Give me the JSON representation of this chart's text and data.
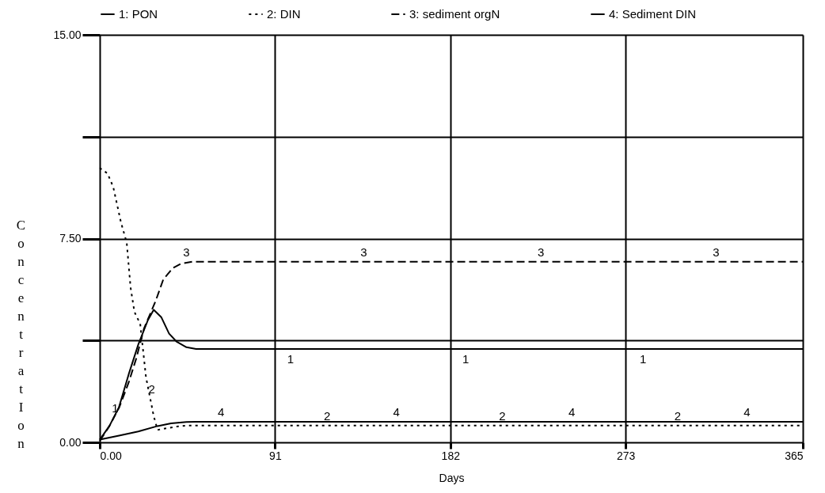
{
  "chart_data": {
    "type": "line",
    "xlabel": "Days",
    "ylabel": "ConcentratIon",
    "xlim": [
      0,
      365
    ],
    "ylim": [
      0,
      15
    ],
    "xticks": [
      {
        "value": 0,
        "label": "0.00"
      },
      91,
      182,
      273,
      365
    ],
    "yticks": [
      {
        "value": 0,
        "label": "0.00"
      },
      {
        "value": 3.75,
        "label": null
      },
      {
        "value": 7.5,
        "label": "7.50"
      },
      {
        "value": 11.25,
        "label": null
      },
      {
        "value": 15,
        "label": "15.00"
      }
    ],
    "grid": true,
    "legend": "top",
    "marker": "none",
    "series": [
      {
        "name": "1: PON",
        "color": "#000000",
        "line_style": "solid",
        "x": [
          0,
          5,
          10,
          15,
          20,
          25,
          28,
          32,
          36,
          40,
          45,
          50,
          365
        ],
        "values": [
          0.1,
          0.6,
          1.3,
          2.5,
          3.6,
          4.5,
          4.88,
          4.6,
          4.0,
          3.7,
          3.5,
          3.44,
          3.44
        ]
      },
      {
        "name": "2: DIN",
        "color": "#000000",
        "line_style": "dotted",
        "x": [
          0,
          4,
          7,
          11,
          14,
          16,
          18,
          21,
          24,
          28,
          30,
          33,
          40,
          45,
          365
        ],
        "values": [
          10.1,
          9.9,
          9.4,
          8.1,
          7.35,
          5.7,
          4.8,
          4.36,
          2.4,
          0.97,
          0.46,
          0.5,
          0.58,
          0.62,
          0.62
        ]
      },
      {
        "name": "3: sediment orgN",
        "color": "#000000",
        "line_style": "dashed",
        "x": [
          0,
          5,
          10,
          15,
          19,
          23,
          29,
          33,
          38,
          42,
          48,
          365
        ],
        "values": [
          0.05,
          0.6,
          1.27,
          2.2,
          3.1,
          4.2,
          5.2,
          6.0,
          6.42,
          6.57,
          6.65,
          6.65
        ]
      },
      {
        "name": "4: Sediment DIN",
        "color": "#000000",
        "line_style": "solid",
        "x": [
          0,
          10,
          20,
          30,
          37,
          45,
          50,
          365
        ],
        "values": [
          0.1,
          0.25,
          0.4,
          0.6,
          0.7,
          0.75,
          0.76,
          0.76
        ]
      }
    ],
    "annotations": [
      {
        "text": "1",
        "x": 8,
        "y": 0.9
      },
      {
        "text": "1",
        "x": 99,
        "y": 3.44
      },
      {
        "text": "1",
        "x": 190,
        "y": 3.44
      },
      {
        "text": "1",
        "x": 282,
        "y": 3.44
      },
      {
        "text": "2",
        "x": 27,
        "y": 1.6
      },
      {
        "text": "2",
        "x": 118,
        "y": 0.62
      },
      {
        "text": "2",
        "x": 209,
        "y": 0.62
      },
      {
        "text": "2",
        "x": 300,
        "y": 0.62
      },
      {
        "text": "3",
        "x": 45,
        "y": 6.65
      },
      {
        "text": "3",
        "x": 137,
        "y": 6.65
      },
      {
        "text": "3",
        "x": 229,
        "y": 6.65
      },
      {
        "text": "3",
        "x": 320,
        "y": 6.65
      },
      {
        "text": "4",
        "x": 63,
        "y": 0.76
      },
      {
        "text": "4",
        "x": 154,
        "y": 0.76
      },
      {
        "text": "4",
        "x": 245,
        "y": 0.76
      },
      {
        "text": "4",
        "x": 336,
        "y": 0.76
      }
    ]
  }
}
